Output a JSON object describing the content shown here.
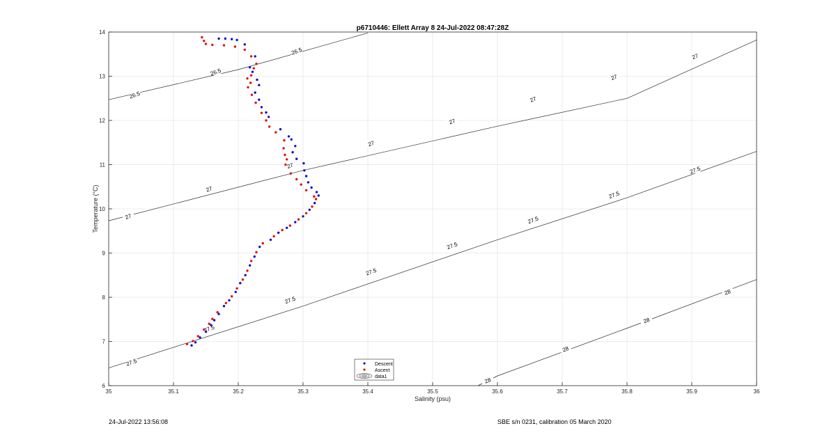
{
  "chart_data": {
    "type": "scatter",
    "title": "p6710446: Ellett Array 8 24-Jul-2022 08:47:28Z",
    "xlabel": "Salinity (psu)",
    "ylabel": "Temperature (°C)",
    "xlim": [
      35,
      36
    ],
    "ylim": [
      6,
      14
    ],
    "xticks": [
      "35",
      "35.1",
      "35.2",
      "35.3",
      "35.4",
      "35.5",
      "35.6",
      "35.7",
      "35.8",
      "35.9",
      "36"
    ],
    "yticks": [
      "6",
      "7",
      "8",
      "9",
      "10",
      "11",
      "12",
      "13",
      "14"
    ],
    "grid": true,
    "legend_position": "bottom-center",
    "legend": [
      "Descent",
      "Ascent",
      "data1"
    ],
    "series": [
      {
        "name": "Descent",
        "color": "#1010c8",
        "points": [
          [
            35.128,
            6.91
          ],
          [
            35.134,
            6.98
          ],
          [
            35.141,
            7.09
          ],
          [
            35.15,
            7.22
          ],
          [
            35.158,
            7.37
          ],
          [
            35.163,
            7.48
          ],
          [
            35.17,
            7.62
          ],
          [
            35.178,
            7.8
          ],
          [
            35.186,
            7.93
          ],
          [
            35.196,
            8.12
          ],
          [
            35.203,
            8.32
          ],
          [
            35.211,
            8.5
          ],
          [
            35.218,
            8.72
          ],
          [
            35.225,
            8.92
          ],
          [
            35.233,
            9.14
          ],
          [
            35.25,
            9.3
          ],
          [
            35.262,
            9.46
          ],
          [
            35.275,
            9.57
          ],
          [
            35.288,
            9.7
          ],
          [
            35.3,
            9.83
          ],
          [
            35.31,
            9.98
          ],
          [
            35.318,
            10.13
          ],
          [
            35.324,
            10.3
          ],
          [
            35.321,
            10.38
          ],
          [
            35.313,
            10.48
          ],
          [
            35.308,
            10.6
          ],
          [
            35.305,
            10.74
          ],
          [
            35.302,
            10.87
          ],
          [
            35.301,
            11.03
          ],
          [
            35.29,
            11.13
          ],
          [
            35.284,
            11.28
          ],
          [
            35.288,
            11.42
          ],
          [
            35.282,
            11.57
          ],
          [
            35.278,
            11.64
          ],
          [
            35.265,
            11.8
          ],
          [
            35.247,
            12.08
          ],
          [
            35.243,
            12.18
          ],
          [
            35.236,
            12.3
          ],
          [
            35.232,
            12.47
          ],
          [
            35.226,
            12.63
          ],
          [
            35.232,
            12.8
          ],
          [
            35.229,
            12.92
          ],
          [
            35.222,
            13.1
          ],
          [
            35.218,
            13.2
          ],
          [
            35.226,
            13.45
          ],
          [
            35.21,
            13.72
          ],
          [
            35.198,
            13.82
          ],
          [
            35.19,
            13.84
          ],
          [
            35.18,
            13.85
          ],
          [
            35.17,
            13.85
          ]
        ]
      },
      {
        "name": "Ascent",
        "color": "#e01010",
        "points": [
          [
            35.121,
            6.94
          ],
          [
            35.13,
            7.01
          ],
          [
            35.138,
            7.12
          ],
          [
            35.147,
            7.27
          ],
          [
            35.155,
            7.4
          ],
          [
            35.16,
            7.51
          ],
          [
            35.168,
            7.66
          ],
          [
            35.181,
            7.87
          ],
          [
            35.19,
            8.02
          ],
          [
            35.198,
            8.2
          ],
          [
            35.207,
            8.4
          ],
          [
            35.214,
            8.6
          ],
          [
            35.22,
            8.82
          ],
          [
            35.228,
            9.02
          ],
          [
            35.238,
            9.22
          ],
          [
            35.255,
            9.38
          ],
          [
            35.268,
            9.52
          ],
          [
            35.28,
            9.62
          ],
          [
            35.293,
            9.76
          ],
          [
            35.305,
            9.9
          ],
          [
            35.314,
            10.05
          ],
          [
            35.32,
            10.22
          ],
          [
            35.317,
            10.28
          ],
          [
            35.305,
            10.42
          ],
          [
            35.297,
            10.55
          ],
          [
            35.29,
            10.67
          ],
          [
            35.281,
            10.8
          ],
          [
            35.273,
            11.0
          ],
          [
            35.275,
            11.12
          ],
          [
            35.272,
            11.22
          ],
          [
            35.27,
            11.37
          ],
          [
            35.271,
            11.55
          ],
          [
            35.258,
            11.73
          ],
          [
            35.248,
            11.86
          ],
          [
            35.243,
            12.0
          ],
          [
            35.236,
            12.17
          ],
          [
            35.227,
            12.4
          ],
          [
            35.221,
            12.58
          ],
          [
            35.215,
            12.75
          ],
          [
            35.219,
            12.85
          ],
          [
            35.214,
            12.95
          ],
          [
            35.22,
            13.02
          ],
          [
            35.224,
            13.18
          ],
          [
            35.228,
            13.28
          ],
          [
            35.22,
            13.45
          ],
          [
            35.21,
            13.6
          ],
          [
            35.195,
            13.67
          ],
          [
            35.178,
            13.7
          ],
          [
            35.16,
            13.71
          ],
          [
            35.15,
            13.73
          ],
          [
            35.147,
            13.8
          ],
          [
            35.144,
            13.88
          ]
        ]
      }
    ],
    "isopycnals": [
      {
        "label": "26.5",
        "points": [
          [
            35.0,
            12.47
          ],
          [
            35.2,
            13.15
          ],
          [
            35.4,
            13.98
          ]
        ],
        "label_positions": [
          [
            35.04,
            12.58
          ],
          [
            35.165,
            13.1
          ],
          [
            35.29,
            13.57
          ]
        ]
      },
      {
        "label": "27",
        "points": [
          [
            35.0,
            9.73
          ],
          [
            35.3,
            10.87
          ],
          [
            35.6,
            11.87
          ],
          [
            35.8,
            12.5
          ],
          [
            36.0,
            13.82
          ]
        ],
        "label_positions": [
          [
            35.03,
            9.83
          ],
          [
            35.155,
            10.45
          ],
          [
            35.28,
            10.98
          ],
          [
            35.405,
            11.48
          ],
          [
            35.53,
            11.98
          ],
          [
            35.655,
            12.48
          ],
          [
            35.78,
            12.98
          ],
          [
            35.905,
            13.45
          ]
        ]
      },
      {
        "label": "27.5",
        "points": [
          [
            35.0,
            6.4
          ],
          [
            35.3,
            7.8
          ],
          [
            35.6,
            9.3
          ],
          [
            35.8,
            10.25
          ],
          [
            36.0,
            11.3
          ]
        ],
        "label_positions": [
          [
            35.035,
            6.53
          ],
          [
            35.155,
            7.29
          ],
          [
            35.28,
            7.94
          ],
          [
            35.405,
            8.58
          ],
          [
            35.53,
            9.17
          ],
          [
            35.655,
            9.75
          ],
          [
            35.78,
            10.32
          ],
          [
            35.905,
            10.88
          ]
        ]
      },
      {
        "label": "28",
        "points": [
          [
            35.57,
            6.0
          ],
          [
            35.6,
            6.22
          ],
          [
            35.8,
            7.3
          ],
          [
            36.0,
            8.4
          ]
        ],
        "label_positions": [
          [
            35.585,
            6.12
          ],
          [
            35.705,
            6.83
          ],
          [
            35.83,
            7.48
          ],
          [
            35.955,
            8.12
          ]
        ]
      }
    ]
  },
  "footer": {
    "left": "24-Jul-2022 13:56:08",
    "right": "SBE s/n 0231, calibration 05 March 2020"
  }
}
